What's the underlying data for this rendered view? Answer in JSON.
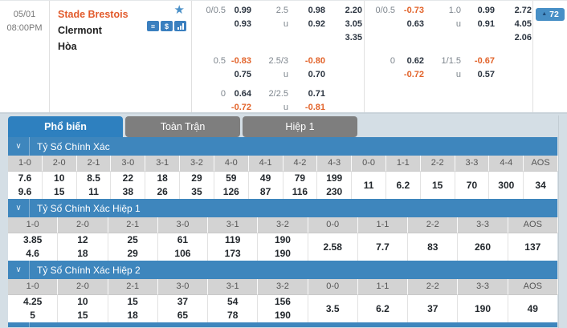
{
  "match": {
    "date": "05/01",
    "time": "08:00PM",
    "home_team": "Stade Brestois",
    "away_team": "Clermont",
    "draw_label": "Hòa",
    "bookmaker_count": "72",
    "icons": [
      "favorite-star-icon",
      "bet-list-icon",
      "cash-odds-icon",
      "stats-bars-icon",
      "count-up-icon"
    ]
  },
  "odds_blocks": [
    {
      "name": "full-time-odds",
      "groups": [
        {
          "rows": [
            [
              "0/0.5",
              "0.99",
              "2.5",
              "0.98",
              "2.20"
            ],
            [
              "",
              "0.93",
              "u",
              "0.92",
              "3.05"
            ],
            [
              "",
              "",
              "",
              "",
              "3.35"
            ]
          ]
        },
        {
          "rows": [
            [
              "0.5",
              "-0.83",
              "2.5/3",
              "-0.80",
              ""
            ],
            [
              "",
              "0.75",
              "u",
              "0.70",
              ""
            ]
          ]
        },
        {
          "rows": [
            [
              "0",
              "0.64",
              "2/2.5",
              "0.71",
              ""
            ],
            [
              "",
              "-0.72",
              "u",
              "-0.81",
              ""
            ]
          ]
        }
      ]
    },
    {
      "name": "first-half-odds",
      "groups": [
        {
          "rows": [
            [
              "0/0.5",
              "-0.73",
              "1.0",
              "0.99",
              "2.72"
            ],
            [
              "",
              "0.63",
              "u",
              "0.91",
              "4.05"
            ],
            [
              "",
              "",
              "",
              "",
              "2.06"
            ]
          ]
        },
        {
          "rows": [
            [
              "0",
              "0.62",
              "1/1.5",
              "-0.67",
              ""
            ],
            [
              "",
              "-0.72",
              "u",
              "0.57",
              ""
            ]
          ]
        },
        {
          "rows": []
        }
      ]
    }
  ],
  "tabs": [
    {
      "label": "Phổ biến",
      "active": true
    },
    {
      "label": "Toàn Trận",
      "active": false
    },
    {
      "label": "Hiệp 1",
      "active": false
    }
  ],
  "sections": [
    {
      "title": "Tỷ Số Chính Xác",
      "pair_count": 10,
      "headers": [
        "1-0",
        "2-0",
        "2-1",
        "3-0",
        "3-1",
        "3-2",
        "4-0",
        "4-1",
        "4-2",
        "4-3",
        "0-0",
        "1-1",
        "2-2",
        "3-3",
        "4-4",
        "AOS"
      ],
      "top": [
        "7.6",
        "10",
        "8.5",
        "22",
        "18",
        "29",
        "59",
        "49",
        "79",
        "199"
      ],
      "bottom": [
        "9.6",
        "15",
        "11",
        "38",
        "26",
        "35",
        "126",
        "87",
        "116",
        "230"
      ],
      "singles": [
        "11",
        "6.2",
        "15",
        "70",
        "300",
        "34"
      ]
    },
    {
      "title": "Tỷ Số Chính Xác Hiệp 1",
      "pair_count": 6,
      "headers": [
        "1-0",
        "2-0",
        "2-1",
        "3-0",
        "3-1",
        "3-2",
        "0-0",
        "1-1",
        "2-2",
        "3-3",
        "AOS"
      ],
      "top": [
        "3.85",
        "12",
        "25",
        "61",
        "119",
        "190"
      ],
      "bottom": [
        "4.6",
        "18",
        "29",
        "106",
        "173",
        "190"
      ],
      "singles": [
        "2.58",
        "7.7",
        "83",
        "260",
        "137"
      ]
    },
    {
      "title": "Tỷ Số Chính Xác Hiệp 2",
      "pair_count": 6,
      "headers": [
        "1-0",
        "2-0",
        "2-1",
        "3-0",
        "3-1",
        "3-2",
        "0-0",
        "1-1",
        "2-2",
        "3-3",
        "AOS"
      ],
      "top": [
        "4.25",
        "10",
        "15",
        "37",
        "54",
        "156"
      ],
      "bottom": [
        "5",
        "15",
        "18",
        "65",
        "78",
        "190"
      ],
      "singles": [
        "3.5",
        "6.2",
        "37",
        "190",
        "49"
      ]
    }
  ],
  "colors": {
    "accent_blue": "#3e86bd",
    "tab_active_blue": "#2e80bf",
    "tab_inactive_gray": "#7e7e7e",
    "negative_orange": "#e2632a",
    "home_team_orange": "#e25a2b",
    "header_cell_gray": "#d3d3d3",
    "icon_blue": "#3a7fbf"
  }
}
